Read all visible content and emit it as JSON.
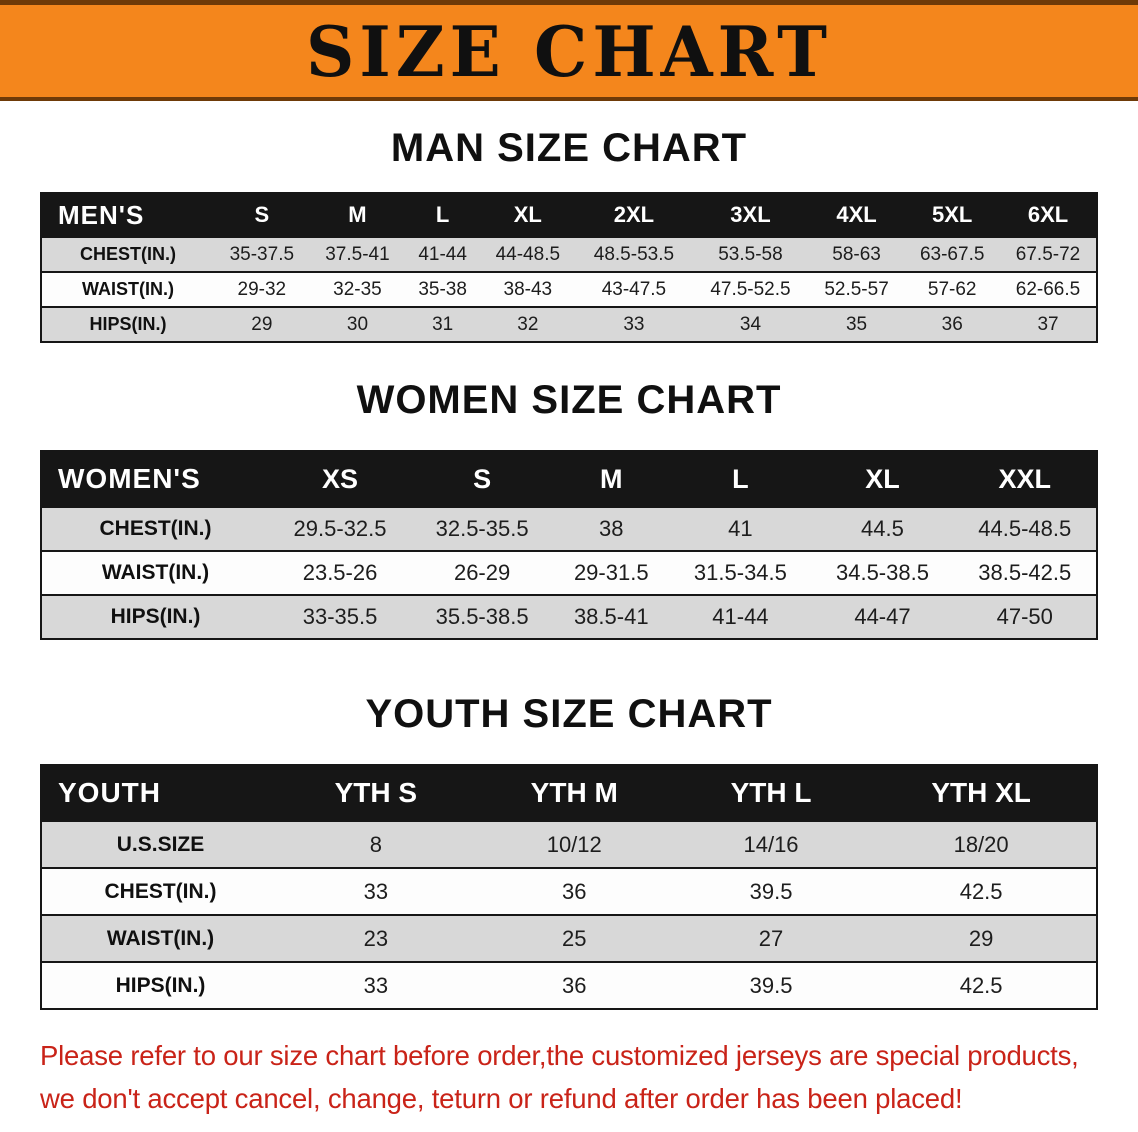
{
  "banner": {
    "title": "SIZE CHART"
  },
  "colors": {
    "banner_orange": "#f4861c",
    "header_black": "#161616",
    "row_gray": "#d8d8d8",
    "disclaimer_red": "#c92318"
  },
  "sections": [
    {
      "id": "men",
      "title": "MAN SIZE CHART",
      "table": {
        "header": [
          "MEN'S",
          "S",
          "M",
          "L",
          "XL",
          "2XL",
          "3XL",
          "4XL",
          "5XL",
          "6XL"
        ],
        "rows": [
          [
            "CHEST(IN.)",
            "35-37.5",
            "37.5-41",
            "41-44",
            "44-48.5",
            "48.5-53.5",
            "53.5-58",
            "58-63",
            "63-67.5",
            "67.5-72"
          ],
          [
            "WAIST(IN.)",
            "29-32",
            "32-35",
            "35-38",
            "38-43",
            "43-47.5",
            "47.5-52.5",
            "52.5-57",
            "57-62",
            "62-66.5"
          ],
          [
            "HIPS(IN.)",
            "29",
            "30",
            "31",
            "32",
            "33",
            "34",
            "35",
            "36",
            "37"
          ]
        ]
      }
    },
    {
      "id": "women",
      "title": "WOMEN SIZE CHART",
      "table": {
        "header": [
          "WOMEN'S",
          "XS",
          "S",
          "M",
          "L",
          "XL",
          "XXL"
        ],
        "rows": [
          [
            "CHEST(IN.)",
            "29.5-32.5",
            "32.5-35.5",
            "38",
            "41",
            "44.5",
            "44.5-48.5"
          ],
          [
            "WAIST(IN.)",
            "23.5-26",
            "26-29",
            "29-31.5",
            "31.5-34.5",
            "34.5-38.5",
            "38.5-42.5"
          ],
          [
            "HIPS(IN.)",
            "33-35.5",
            "35.5-38.5",
            "38.5-41",
            "41-44",
            "44-47",
            "47-50"
          ]
        ]
      }
    },
    {
      "id": "youth",
      "title": "YOUTH SIZE CHART",
      "table": {
        "header": [
          "YOUTH",
          "YTH S",
          "YTH M",
          "YTH L",
          "YTH XL"
        ],
        "rows": [
          [
            "U.S.SIZE",
            "8",
            "10/12",
            "14/16",
            "18/20"
          ],
          [
            "CHEST(IN.)",
            "33",
            "36",
            "39.5",
            "42.5"
          ],
          [
            "WAIST(IN.)",
            "23",
            "25",
            "27",
            "29"
          ],
          [
            "HIPS(IN.)",
            "33",
            "36",
            "39.5",
            "42.5"
          ]
        ]
      }
    }
  ],
  "footer": {
    "line1": "Please refer to our size chart before order,the customized jerseys are special products,",
    "line2": "we don't accept cancel, change, teturn or refund after order has been placed!"
  }
}
